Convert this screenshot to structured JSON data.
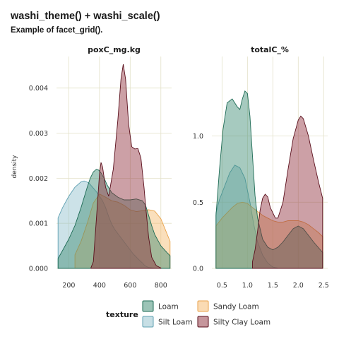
{
  "chart_data": {
    "type": "area",
    "title": "washi_theme() + washi_scale()",
    "subtitle": "Example of facet_grid().",
    "ylabel": "density",
    "legend": {
      "title": "texture",
      "placement": "bottom",
      "entries": [
        {
          "name": "Loam",
          "color": "#3a8a70"
        },
        {
          "name": "Sandy Loam",
          "color": "#f5b86a"
        },
        {
          "name": "Silt Loam",
          "color": "#8fbfcc"
        },
        {
          "name": "Silty Clay Loam",
          "color": "#8e2d3a"
        }
      ]
    },
    "facets": [
      {
        "strip": "poxC_mg.kg",
        "xlim": [
          120,
          870
        ],
        "ylim": [
          0,
          0.0047
        ],
        "xticks": [
          200,
          400,
          600,
          800
        ],
        "xtick_labels": [
          "200",
          "400",
          "600",
          "800"
        ],
        "yticks": [
          0,
          0.001,
          0.002,
          0.003,
          0.004
        ],
        "ytick_labels": [
          "0.000",
          "0.001",
          "0.002",
          "0.003",
          "0.004"
        ],
        "series": [
          {
            "name": "Silt Loam",
            "x": [
              130,
              160,
              200,
              240,
              280,
              300,
              330,
              360,
              380,
              400,
              420,
              440,
              460,
              480,
              500,
              540,
              580,
              620,
              660,
              680,
              690,
              700,
              720,
              760
            ],
            "y": [
              0.00112,
              0.00135,
              0.0016,
              0.0018,
              0.00192,
              0.00194,
              0.0019,
              0.00178,
              0.0017,
              0.0016,
              0.0015,
              0.00135,
              0.00115,
              0.00098,
              0.00086,
              0.00068,
              0.0005,
              0.00032,
              0.00018,
              0.00012,
              8e-05,
              5e-05,
              2e-05,
              2e-06
            ]
          },
          {
            "name": "Sandy Loam",
            "x": [
              240,
              280,
              320,
              360,
              400,
              440,
              480,
              520,
              560,
              600,
              640,
              680,
              720,
              760,
              800,
              830,
              860
            ],
            "y": [
              0.0003,
              0.0006,
              0.001,
              0.00145,
              0.00165,
              0.00158,
              0.0015,
              0.00147,
              0.0014,
              0.0013,
              0.00126,
              0.00128,
              0.0013,
              0.00127,
              0.0011,
              0.00085,
              0.0006
            ]
          },
          {
            "name": "Loam",
            "x": [
              130,
              160,
              200,
              240,
              280,
              320,
              340,
              360,
              380,
              395,
              410,
              430,
              450,
              480,
              520,
              560,
              600,
              640,
              680,
              700,
              720,
              740,
              760,
              800,
              840,
              860
            ],
            "y": [
              0.00022,
              0.0004,
              0.00065,
              0.00095,
              0.00135,
              0.0018,
              0.002,
              0.00214,
              0.0022,
              0.00218,
              0.00212,
              0.002,
              0.00185,
              0.00168,
              0.00158,
              0.00152,
              0.00152,
              0.00154,
              0.0015,
              0.0014,
              0.00118,
              0.00095,
              0.00075,
              0.0005,
              0.00035,
              0.00028
            ]
          },
          {
            "name": "Silty Clay Loam",
            "x": [
              345,
              360,
              380,
              400,
              410,
              420,
              440,
              460,
              490,
              520,
              540,
              555,
              570,
              590,
              610,
              630,
              650,
              670,
              690,
              700,
              720,
              740,
              770,
              800
            ],
            "y": [
              2e-05,
              0.00015,
              0.0011,
              0.0021,
              0.00235,
              0.00225,
              0.0018,
              0.0016,
              0.0022,
              0.0033,
              0.0042,
              0.00453,
              0.0042,
              0.0032,
              0.0027,
              0.00265,
              0.00266,
              0.00245,
              0.0018,
              0.0014,
              0.0007,
              0.00025,
              6e-05,
              1e-05
            ]
          }
        ]
      },
      {
        "strip": "totalC_%",
        "xlim": [
          0.3,
          2.58
        ],
        "ylim": [
          0,
          1.6
        ],
        "xticks": [
          0.5,
          1.0,
          1.5,
          2.0,
          2.5
        ],
        "xtick_labels": [
          "0.5",
          "1.0",
          "1.5",
          "2.0",
          "2.5"
        ],
        "yticks": [
          0,
          0.5,
          1.0
        ],
        "ytick_labels": [
          "0.0",
          "0.5",
          "1.0"
        ],
        "series": [
          {
            "name": "Silt Loam",
            "x": [
              0.38,
              0.45,
              0.55,
              0.65,
              0.75,
              0.85,
              0.95,
              1.05,
              1.12,
              1.2,
              1.3,
              1.4,
              1.5,
              1.6
            ],
            "y": [
              0.42,
              0.52,
              0.62,
              0.72,
              0.78,
              0.76,
              0.68,
              0.5,
              0.34,
              0.2,
              0.1,
              0.04,
              0.01,
              0.002
            ]
          },
          {
            "name": "Sandy Loam",
            "x": [
              0.38,
              0.5,
              0.6,
              0.7,
              0.8,
              0.9,
              1.0,
              1.1,
              1.2,
              1.3,
              1.4,
              1.5,
              1.6,
              1.7,
              1.8,
              1.9,
              2.0,
              2.1,
              2.2,
              2.3,
              2.4,
              2.48
            ],
            "y": [
              0.32,
              0.38,
              0.42,
              0.46,
              0.49,
              0.5,
              0.49,
              0.46,
              0.43,
              0.4,
              0.38,
              0.36,
              0.35,
              0.35,
              0.36,
              0.36,
              0.36,
              0.35,
              0.33,
              0.3,
              0.27,
              0.24
            ]
          },
          {
            "name": "Loam",
            "x": [
              0.38,
              0.45,
              0.52,
              0.6,
              0.7,
              0.8,
              0.85,
              0.9,
              0.95,
              1.0,
              1.05,
              1.1,
              1.15,
              1.2,
              1.3,
              1.4,
              1.5,
              1.6,
              1.7,
              1.8,
              1.9,
              2.0,
              2.1,
              2.2,
              2.3,
              2.48
            ],
            "y": [
              0.4,
              0.75,
              1.05,
              1.25,
              1.28,
              1.22,
              1.2,
              1.28,
              1.34,
              1.32,
              1.15,
              0.85,
              0.55,
              0.38,
              0.22,
              0.16,
              0.14,
              0.16,
              0.2,
              0.25,
              0.3,
              0.32,
              0.3,
              0.25,
              0.2,
              0.12
            ]
          },
          {
            "name": "Silty Clay Loam",
            "x": [
              1.1,
              1.15,
              1.2,
              1.25,
              1.3,
              1.35,
              1.4,
              1.45,
              1.5,
              1.55,
              1.6,
              1.7,
              1.8,
              1.9,
              2.0,
              2.05,
              2.1,
              2.2,
              2.3,
              2.4,
              2.48
            ],
            "y": [
              0.05,
              0.14,
              0.28,
              0.44,
              0.53,
              0.56,
              0.54,
              0.46,
              0.42,
              0.38,
              0.38,
              0.5,
              0.75,
              0.98,
              1.12,
              1.15,
              1.13,
              1.0,
              0.82,
              0.65,
              0.53
            ]
          }
        ]
      }
    ]
  }
}
